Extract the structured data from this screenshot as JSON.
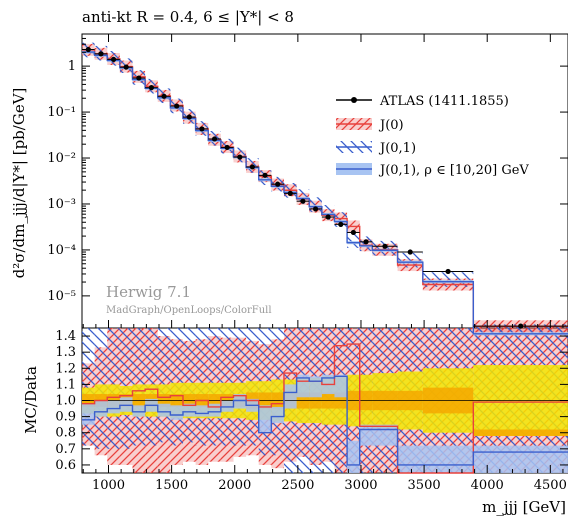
{
  "chart_data": {
    "type": "histogram-ratio",
    "title": "anti-kt R = 0.4, 6 ≤ |Y*| < 8",
    "xlabel": "m_jjj [GeV]",
    "ylabel_main": "d²σ/dm_jjj/d|Y*| [pb/GeV]",
    "ylabel_ratio": "MC/Data",
    "generator": "Herwig 7.1",
    "generator_sub": "MadGraph/OpenLoops/ColorFull",
    "xlim": [
      790,
      4640
    ],
    "ylim_main": [
      2e-06,
      5
    ],
    "ylim_ratio": [
      0.55,
      1.45
    ],
    "xticks": [
      1000,
      1500,
      2000,
      2500,
      3000,
      3500,
      4000,
      4500
    ],
    "yticks_main": [
      {
        "v": 1,
        "label": "1"
      },
      {
        "v": 0.1,
        "label": "10⁻¹"
      },
      {
        "v": 0.01,
        "label": "10⁻²"
      },
      {
        "v": 0.001,
        "label": "10⁻³"
      },
      {
        "v": 0.0001,
        "label": "10⁻⁴"
      },
      {
        "v": 1e-05,
        "label": "10⁻⁵"
      }
    ],
    "yticks_ratio": [
      0.6,
      0.7,
      0.8,
      0.9,
      1.0,
      1.1,
      1.2,
      1.3,
      1.4
    ],
    "yticks_ratio_labels": [
      "0.6",
      "0.7",
      "0.8",
      "0.9",
      "1.0",
      "1.1",
      "1.2",
      "1.3",
      "1.4"
    ],
    "bin_edges": [
      790,
      890,
      990,
      1090,
      1190,
      1290,
      1390,
      1490,
      1590,
      1690,
      1790,
      1890,
      1990,
      2090,
      2190,
      2290,
      2390,
      2490,
      2590,
      2690,
      2790,
      2890,
      2990,
      3090,
      3290,
      3490,
      3890,
      4640
    ],
    "data_values": [
      2.3,
      1.85,
      1.4,
      0.95,
      0.55,
      0.34,
      0.22,
      0.135,
      0.078,
      0.043,
      0.026,
      0.017,
      0.0105,
      0.0064,
      0.0042,
      0.0027,
      0.0017,
      0.00115,
      0.00078,
      0.00052,
      0.00036,
      0.00024,
      0.00015,
      0.00012,
      9e-05,
      3.4e-05,
      2.2e-06
    ],
    "ratio_J0": [
      0.98,
      1.0,
      1.02,
      1.03,
      1.06,
      1.07,
      1.02,
      1.03,
      0.97,
      1.0,
      0.96,
      1.02,
      1.03,
      1.0,
      0.96,
      0.98,
      1.17,
      1.12,
      1.12,
      1.1,
      1.34,
      1.35,
      0.84,
      0.84,
      0.52,
      0.52,
      0.99
    ],
    "ratio_J01": [
      0.88,
      0.93,
      0.95,
      0.97,
      0.93,
      0.97,
      0.93,
      0.91,
      0.93,
      0.92,
      0.93,
      0.96,
      1.0,
      0.97,
      0.8,
      0.9,
      1.05,
      1.14,
      1.12,
      1.14,
      1.15,
      0.6,
      0.82,
      0.82,
      0.6,
      0.6,
      0.68
    ],
    "band_J0": [
      [
        0.72,
        1.23
      ],
      [
        0.66,
        1.33
      ],
      [
        0.6,
        1.45
      ],
      [
        0.6,
        1.45
      ],
      [
        0.55,
        1.45
      ],
      [
        0.55,
        1.45
      ],
      [
        0.55,
        1.4
      ],
      [
        0.6,
        1.38
      ],
      [
        0.62,
        1.37
      ],
      [
        0.6,
        1.38
      ],
      [
        0.62,
        1.4
      ],
      [
        0.62,
        1.39
      ],
      [
        0.65,
        1.39
      ],
      [
        0.66,
        1.37
      ],
      [
        0.6,
        1.35
      ],
      [
        0.58,
        1.38
      ],
      [
        0.62,
        1.45
      ],
      [
        0.65,
        1.45
      ],
      [
        0.6,
        1.45
      ],
      [
        0.62,
        1.45
      ],
      [
        0.55,
        1.45
      ],
      [
        0.55,
        1.45
      ],
      [
        0.55,
        1.45
      ],
      [
        0.55,
        1.45
      ],
      [
        0.55,
        1.45
      ],
      [
        0.55,
        1.45
      ],
      [
        0.55,
        1.45
      ]
    ],
    "band_J01": [
      [
        0.72,
        1.45
      ],
      [
        0.7,
        1.45
      ],
      [
        0.7,
        1.45
      ],
      [
        0.7,
        1.45
      ],
      [
        0.72,
        1.45
      ],
      [
        0.72,
        1.45
      ],
      [
        0.74,
        1.45
      ],
      [
        0.72,
        1.45
      ],
      [
        0.74,
        1.45
      ],
      [
        0.72,
        1.45
      ],
      [
        0.72,
        1.45
      ],
      [
        0.72,
        1.45
      ],
      [
        0.72,
        1.45
      ],
      [
        0.72,
        1.45
      ],
      [
        0.66,
        1.45
      ],
      [
        0.66,
        1.45
      ],
      [
        0.55,
        1.45
      ],
      [
        0.55,
        1.45
      ],
      [
        0.55,
        1.45
      ],
      [
        0.55,
        1.45
      ],
      [
        0.55,
        1.45
      ],
      [
        0.55,
        1.45
      ],
      [
        0.55,
        1.45
      ],
      [
        0.55,
        1.45
      ],
      [
        0.55,
        1.45
      ],
      [
        0.55,
        1.45
      ],
      [
        0.55,
        1.45
      ]
    ],
    "band_rho": [
      [
        0.85,
        0.98
      ],
      [
        0.9,
        1.0
      ],
      [
        0.92,
        1.0
      ],
      [
        0.93,
        1.02
      ],
      [
        0.9,
        0.97
      ],
      [
        0.93,
        1.01
      ],
      [
        0.9,
        0.98
      ],
      [
        0.88,
        0.97
      ],
      [
        0.9,
        0.98
      ],
      [
        0.9,
        0.97
      ],
      [
        0.9,
        0.98
      ],
      [
        0.93,
        1.0
      ],
      [
        0.95,
        1.04
      ],
      [
        0.93,
        1.01
      ],
      [
        0.8,
        0.97
      ],
      [
        0.86,
        0.96
      ],
      [
        0.95,
        1.1
      ],
      [
        1.02,
        1.16
      ],
      [
        1.02,
        1.15
      ],
      [
        1.04,
        1.16
      ],
      [
        1.02,
        1.16
      ],
      [
        0.55,
        0.75
      ],
      [
        0.72,
        0.85
      ],
      [
        0.72,
        0.85
      ],
      [
        0.55,
        0.72
      ],
      [
        0.55,
        0.72
      ],
      [
        0.55,
        0.72
      ]
    ],
    "data_unc": [
      [
        0.92,
        1.08
      ],
      [
        0.9,
        1.1
      ],
      [
        0.9,
        1.1
      ],
      [
        0.91,
        1.09
      ],
      [
        0.9,
        1.1
      ],
      [
        0.9,
        1.1
      ],
      [
        0.9,
        1.1
      ],
      [
        0.89,
        1.11
      ],
      [
        0.89,
        1.11
      ],
      [
        0.89,
        1.11
      ],
      [
        0.89,
        1.11
      ],
      [
        0.89,
        1.11
      ],
      [
        0.89,
        1.11
      ],
      [
        0.88,
        1.12
      ],
      [
        0.88,
        1.12
      ],
      [
        0.87,
        1.13
      ],
      [
        0.87,
        1.13
      ],
      [
        0.86,
        1.14
      ],
      [
        0.86,
        1.14
      ],
      [
        0.85,
        1.15
      ],
      [
        0.85,
        1.15
      ],
      [
        0.84,
        1.16
      ],
      [
        0.84,
        1.16
      ],
      [
        0.83,
        1.17
      ],
      [
        0.82,
        1.18
      ],
      [
        0.8,
        1.2
      ],
      [
        0.78,
        1.22
      ]
    ],
    "data_unc_stat": [
      [
        0.96,
        1.04
      ],
      [
        0.96,
        1.04
      ],
      [
        0.96,
        1.04
      ],
      [
        0.96,
        1.04
      ],
      [
        0.96,
        1.04
      ],
      [
        0.96,
        1.04
      ],
      [
        0.96,
        1.04
      ],
      [
        0.96,
        1.04
      ],
      [
        0.96,
        1.04
      ],
      [
        0.96,
        1.04
      ],
      [
        0.96,
        1.04
      ],
      [
        0.96,
        1.04
      ],
      [
        0.96,
        1.04
      ],
      [
        0.95,
        1.05
      ],
      [
        0.95,
        1.05
      ],
      [
        0.95,
        1.05
      ],
      [
        0.95,
        1.05
      ],
      [
        0.95,
        1.05
      ],
      [
        0.95,
        1.05
      ],
      [
        0.95,
        1.05
      ],
      [
        0.95,
        1.05
      ],
      [
        0.94,
        1.06
      ],
      [
        0.94,
        1.06
      ],
      [
        0.94,
        1.06
      ],
      [
        0.94,
        1.06
      ],
      [
        0.92,
        1.08
      ],
      [
        0.78,
        0.82
      ]
    ],
    "legend": [
      {
        "label": "ATLAS (1411.1855)",
        "style": "data"
      },
      {
        "label": "J(0)",
        "style": "red-hatch"
      },
      {
        "label": "J(0,1)",
        "style": "blue-hatch"
      },
      {
        "label": "J(0,1), ρ ∈  [10,20] GeV",
        "style": "blue-band"
      }
    ],
    "legend_position": "right",
    "colors": {
      "red": "#e8413c",
      "blue": "#3a5fcd",
      "band": "#a8c4f2",
      "yellow": "#f3e600",
      "orange": "#f5a800"
    }
  }
}
